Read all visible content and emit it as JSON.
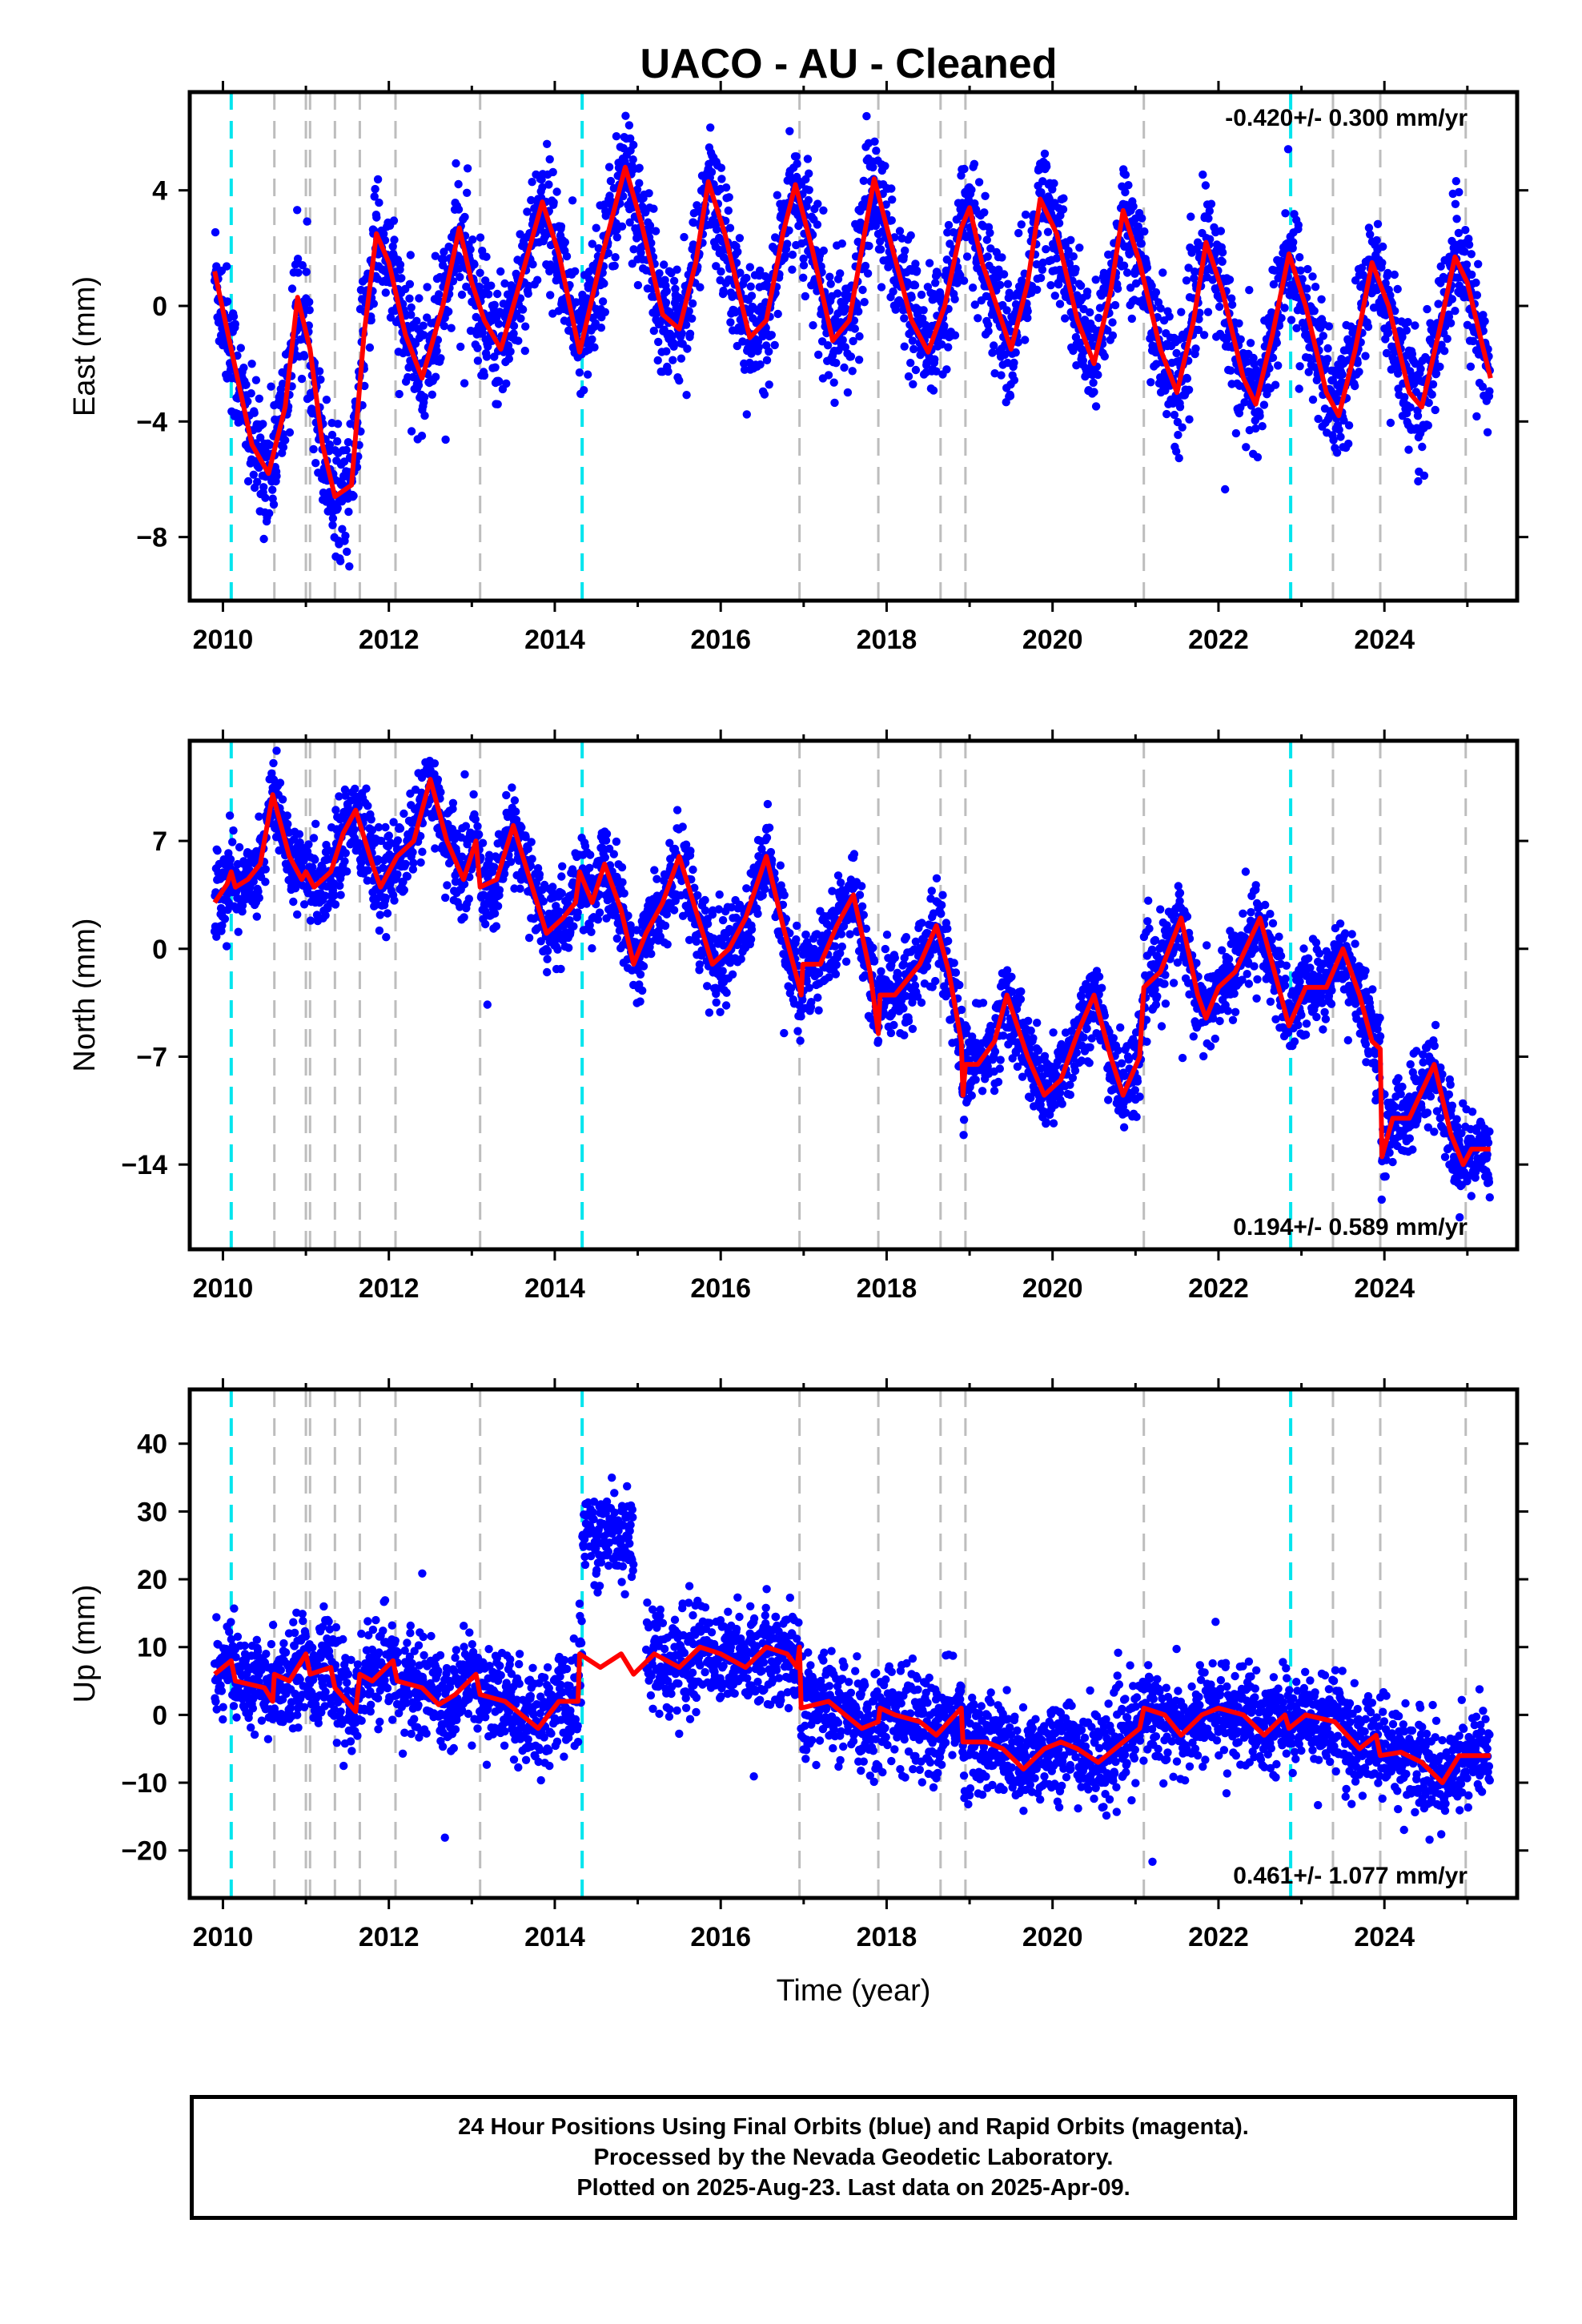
{
  "title": "UACO  - AU - Cleaned",
  "footer": {
    "line1": "24 Hour Positions Using Final Orbits (blue) and Rapid Orbits (magenta).",
    "line2": "Processed by the Nevada Geodetic Laboratory.",
    "line3": "Plotted on 2025-Aug-23. Last data on 2025-Apr-09."
  },
  "colors": {
    "data": "#0000ff",
    "model": "#ff0000",
    "equipment_change": "#00e5ee",
    "event": "#bdbdbd"
  },
  "chart_data": [
    {
      "type": "scatter",
      "component": "East",
      "ylabel": "East (mm)",
      "xlabel": "",
      "xlim": [
        2009.6,
        2025.6
      ],
      "ylim": [
        -10.2,
        7.4
      ],
      "xticks": [
        2010,
        2012,
        2014,
        2016,
        2018,
        2020,
        2022,
        2024
      ],
      "yticks": [
        -8,
        -4,
        0,
        4
      ],
      "ytick_labels": [
        "−8",
        "−4",
        "0",
        "4"
      ],
      "rate": "-0.420+/- 0.300 mm/yr",
      "rate_position": "top-right",
      "offsets": [
        {
          "year": 2014.3,
          "value": 1.2
        }
      ],
      "model_points": [
        [
          2009.9,
          1.2
        ],
        [
          2010.1,
          -1.5
        ],
        [
          2010.35,
          -4.8
        ],
        [
          2010.55,
          -5.8
        ],
        [
          2010.75,
          -3.5
        ],
        [
          2010.9,
          0.3
        ],
        [
          2011.05,
          -1.5
        ],
        [
          2011.2,
          -4.8
        ],
        [
          2011.35,
          -6.6
        ],
        [
          2011.55,
          -6.2
        ],
        [
          2011.7,
          -1.0
        ],
        [
          2011.85,
          2.5
        ],
        [
          2012.0,
          1.5
        ],
        [
          2012.2,
          -1.0
        ],
        [
          2012.4,
          -2.5
        ],
        [
          2012.65,
          0.0
        ],
        [
          2012.85,
          2.7
        ],
        [
          2013.0,
          0.8
        ],
        [
          2013.15,
          -0.5
        ],
        [
          2013.35,
          -1.5
        ],
        [
          2013.55,
          0.5
        ],
        [
          2013.85,
          3.6
        ],
        [
          2014.05,
          1.8
        ],
        [
          2014.3,
          -1.6
        ],
        [
          2014.55,
          1.5
        ],
        [
          2014.85,
          4.8
        ],
        [
          2015.05,
          2.8
        ],
        [
          2015.3,
          -0.3
        ],
        [
          2015.5,
          -0.8
        ],
        [
          2015.7,
          1.5
        ],
        [
          2015.85,
          4.3
        ],
        [
          2016.05,
          2.5
        ],
        [
          2016.35,
          -1.1
        ],
        [
          2016.55,
          -0.5
        ],
        [
          2016.75,
          2.5
        ],
        [
          2016.9,
          4.2
        ],
        [
          2017.1,
          2.0
        ],
        [
          2017.35,
          -1.2
        ],
        [
          2017.55,
          -0.5
        ],
        [
          2017.85,
          4.4
        ],
        [
          2018.05,
          2.2
        ],
        [
          2018.3,
          -0.5
        ],
        [
          2018.5,
          -1.6
        ],
        [
          2018.7,
          0.0
        ],
        [
          2018.9,
          2.7
        ],
        [
          2019.0,
          3.4
        ],
        [
          2019.15,
          1.5
        ],
        [
          2019.35,
          -0.2
        ],
        [
          2019.5,
          -1.5
        ],
        [
          2019.7,
          0.8
        ],
        [
          2019.85,
          3.7
        ],
        [
          2020.05,
          2.5
        ],
        [
          2020.3,
          -0.5
        ],
        [
          2020.5,
          -2.0
        ],
        [
          2020.7,
          0.5
        ],
        [
          2020.85,
          3.3
        ],
        [
          2021.05,
          1.5
        ],
        [
          2021.3,
          -1.5
        ],
        [
          2021.5,
          -3.0
        ],
        [
          2021.7,
          -0.5
        ],
        [
          2021.85,
          2.2
        ],
        [
          2022.05,
          0.5
        ],
        [
          2022.3,
          -2.5
        ],
        [
          2022.45,
          -3.4
        ],
        [
          2022.65,
          -1.0
        ],
        [
          2022.85,
          1.8
        ],
        [
          2023.05,
          0.0
        ],
        [
          2023.3,
          -3.0
        ],
        [
          2023.45,
          -3.8
        ],
        [
          2023.65,
          -1.5
        ],
        [
          2023.85,
          1.5
        ],
        [
          2024.05,
          0.0
        ],
        [
          2024.3,
          -3.0
        ],
        [
          2024.45,
          -3.5
        ],
        [
          2024.65,
          -1.0
        ],
        [
          2024.85,
          1.7
        ],
        [
          2025.0,
          0.8
        ],
        [
          2025.15,
          -1.0
        ],
        [
          2025.28,
          -2.5
        ]
      ]
    },
    {
      "type": "scatter",
      "component": "North",
      "ylabel": "North (mm)",
      "xlabel": "",
      "xlim": [
        2009.6,
        2025.6
      ],
      "ylim": [
        -19.5,
        13.5
      ],
      "xticks": [
        2010,
        2012,
        2014,
        2016,
        2018,
        2020,
        2022,
        2024
      ],
      "yticks": [
        -14,
        -7,
        0,
        7
      ],
      "ytick_labels": [
        "−14",
        "−7",
        "0",
        "7"
      ],
      "rate": "0.194+/- 0.589 mm/yr",
      "rate_position": "bottom-right",
      "model_points": [
        [
          2009.9,
          3.0
        ],
        [
          2010.05,
          4.2
        ],
        [
          2010.1,
          5.0
        ],
        [
          2010.15,
          4.0
        ],
        [
          2010.3,
          4.5
        ],
        [
          2010.45,
          5.5
        ],
        [
          2010.6,
          10.0
        ],
        [
          2010.8,
          6.0
        ],
        [
          2010.95,
          4.5
        ],
        [
          2011.0,
          5.0
        ],
        [
          2011.1,
          4.0
        ],
        [
          2011.3,
          5.0
        ],
        [
          2011.45,
          7.5
        ],
        [
          2011.6,
          9.0
        ],
        [
          2011.8,
          5.5
        ],
        [
          2011.9,
          4.0
        ],
        [
          2012.1,
          6.0
        ],
        [
          2012.3,
          7.0
        ],
        [
          2012.5,
          11.0
        ],
        [
          2012.7,
          7.0
        ],
        [
          2012.9,
          4.5
        ],
        [
          2013.05,
          7.0
        ],
        [
          2013.1,
          4.0
        ],
        [
          2013.3,
          4.5
        ],
        [
          2013.5,
          8.0
        ],
        [
          2013.7,
          4.5
        ],
        [
          2013.9,
          1.0
        ],
        [
          2014.1,
          2.0
        ],
        [
          2014.25,
          3.0
        ],
        [
          2014.3,
          5.0
        ],
        [
          2014.45,
          3.0
        ],
        [
          2014.6,
          5.5
        ],
        [
          2014.8,
          2.5
        ],
        [
          2014.95,
          -1.0
        ],
        [
          2015.1,
          1.0
        ],
        [
          2015.3,
          3.0
        ],
        [
          2015.5,
          6.0
        ],
        [
          2015.7,
          2.5
        ],
        [
          2015.9,
          -1.0
        ],
        [
          2016.1,
          0.0
        ],
        [
          2016.3,
          2.0
        ],
        [
          2016.55,
          6.0
        ],
        [
          2016.75,
          1.5
        ],
        [
          2016.95,
          -2.5
        ],
        [
          2016.97,
          -3.0
        ],
        [
          2016.99,
          -1.0
        ],
        [
          2017.2,
          -1.0
        ],
        [
          2017.4,
          1.5
        ],
        [
          2017.6,
          3.5
        ],
        [
          2017.8,
          -1.5
        ],
        [
          2017.9,
          -5.5
        ],
        [
          2017.92,
          -3.0
        ],
        [
          2018.1,
          -3.0
        ],
        [
          2018.4,
          -1.0
        ],
        [
          2018.6,
          1.5
        ],
        [
          2018.75,
          -1.5
        ],
        [
          2018.9,
          -6.0
        ],
        [
          2018.92,
          -9.5
        ],
        [
          2018.95,
          -7.5
        ],
        [
          2019.1,
          -7.5
        ],
        [
          2019.3,
          -6.0
        ],
        [
          2019.45,
          -3.0
        ],
        [
          2019.7,
          -7.0
        ],
        [
          2019.9,
          -9.5
        ],
        [
          2020.1,
          -8.5
        ],
        [
          2020.3,
          -5.5
        ],
        [
          2020.5,
          -3.0
        ],
        [
          2020.7,
          -7.0
        ],
        [
          2020.85,
          -9.5
        ],
        [
          2021.05,
          -7.0
        ],
        [
          2021.1,
          -2.5
        ],
        [
          2021.3,
          -1.5
        ],
        [
          2021.55,
          2.0
        ],
        [
          2021.75,
          -3.0
        ],
        [
          2021.85,
          -4.5
        ],
        [
          2022.0,
          -2.5
        ],
        [
          2022.2,
          -1.5
        ],
        [
          2022.5,
          2.0
        ],
        [
          2022.7,
          -2.0
        ],
        [
          2022.85,
          -5.0
        ],
        [
          2023.05,
          -2.5
        ],
        [
          2023.3,
          -2.5
        ],
        [
          2023.5,
          0.0
        ],
        [
          2023.7,
          -3.0
        ],
        [
          2023.85,
          -6.0
        ],
        [
          2023.95,
          -6.5
        ],
        [
          2023.97,
          -13.5
        ],
        [
          2024.1,
          -11.0
        ],
        [
          2024.3,
          -11.0
        ],
        [
          2024.6,
          -7.5
        ],
        [
          2024.8,
          -12.0
        ],
        [
          2024.95,
          -14.0
        ],
        [
          2025.05,
          -13.0
        ],
        [
          2025.28,
          -13.0
        ]
      ]
    },
    {
      "type": "scatter",
      "component": "Up",
      "ylabel": "Up (mm)",
      "xlabel": "Time (year)",
      "xlim": [
        2009.6,
        2025.6
      ],
      "ylim": [
        -27,
        48
      ],
      "xticks": [
        2010,
        2012,
        2014,
        2016,
        2018,
        2020,
        2022,
        2024
      ],
      "yticks": [
        -20,
        -10,
        0,
        10,
        20,
        30,
        40
      ],
      "ytick_labels": [
        "−20",
        "−10",
        "0",
        "10",
        "20",
        "30",
        "40"
      ],
      "rate": "0.461+/- 1.077 mm/yr",
      "rate_position": "bottom-right",
      "offsets": [
        {
          "year_start": 2014.3,
          "year_end": 2015.0,
          "value": 27
        }
      ],
      "model_points": [
        [
          2009.9,
          6.0
        ],
        [
          2010.1,
          8.0
        ],
        [
          2010.15,
          5.0
        ],
        [
          2010.5,
          4.0
        ],
        [
          2010.6,
          2.0
        ],
        [
          2010.62,
          6.0
        ],
        [
          2010.8,
          5.0
        ],
        [
          2011.0,
          9.0
        ],
        [
          2011.05,
          6.0
        ],
        [
          2011.3,
          7.0
        ],
        [
          2011.35,
          4.0
        ],
        [
          2011.6,
          0.5
        ],
        [
          2011.65,
          6.0
        ],
        [
          2011.8,
          5.0
        ],
        [
          2012.05,
          8.0
        ],
        [
          2012.1,
          5.0
        ],
        [
          2012.4,
          4.0
        ],
        [
          2012.6,
          1.5
        ],
        [
          2012.8,
          3.0
        ],
        [
          2013.05,
          6.0
        ],
        [
          2013.1,
          3.0
        ],
        [
          2013.4,
          2.0
        ],
        [
          2013.6,
          0.0
        ],
        [
          2013.8,
          -2.0
        ],
        [
          2014.05,
          2.0
        ],
        [
          2014.28,
          2.0
        ],
        [
          2014.3,
          9.0
        ],
        [
          2014.55,
          7.0
        ],
        [
          2014.8,
          9.0
        ],
        [
          2014.95,
          6.0
        ],
        [
          2015.2,
          9.0
        ],
        [
          2015.5,
          7.0
        ],
        [
          2015.75,
          10.0
        ],
        [
          2016.0,
          9.0
        ],
        [
          2016.3,
          7.0
        ],
        [
          2016.55,
          10.0
        ],
        [
          2016.8,
          9.0
        ],
        [
          2016.92,
          7.0
        ],
        [
          2016.95,
          10.0
        ],
        [
          2016.97,
          1.0
        ],
        [
          2017.3,
          2.0
        ],
        [
          2017.5,
          0.0
        ],
        [
          2017.7,
          -2.0
        ],
        [
          2017.9,
          -1.0
        ],
        [
          2017.92,
          1.0
        ],
        [
          2018.1,
          0.0
        ],
        [
          2018.4,
          -1.0
        ],
        [
          2018.6,
          -3.0
        ],
        [
          2018.9,
          1.0
        ],
        [
          2018.92,
          -4.0
        ],
        [
          2019.2,
          -4.0
        ],
        [
          2019.4,
          -5.0
        ],
        [
          2019.65,
          -8.0
        ],
        [
          2019.9,
          -5.0
        ],
        [
          2020.1,
          -4.0
        ],
        [
          2020.3,
          -5.0
        ],
        [
          2020.55,
          -7.0
        ],
        [
          2020.85,
          -4.0
        ],
        [
          2021.05,
          -2.0
        ],
        [
          2021.1,
          1.0
        ],
        [
          2021.35,
          0.0
        ],
        [
          2021.55,
          -3.0
        ],
        [
          2021.8,
          0.0
        ],
        [
          2022.0,
          1.0
        ],
        [
          2022.3,
          0.0
        ],
        [
          2022.55,
          -3.0
        ],
        [
          2022.8,
          0.0
        ],
        [
          2022.85,
          -2.0
        ],
        [
          2023.05,
          0.0
        ],
        [
          2023.4,
          -1.0
        ],
        [
          2023.7,
          -5.0
        ],
        [
          2023.9,
          -3.0
        ],
        [
          2023.95,
          -6.0
        ],
        [
          2024.2,
          -5.5
        ],
        [
          2024.45,
          -7.0
        ],
        [
          2024.7,
          -10.0
        ],
        [
          2024.9,
          -6.0
        ],
        [
          2025.28,
          -6.0
        ]
      ]
    }
  ],
  "equipment_changes": [
    2010.1,
    2014.33,
    2022.87
  ],
  "events": [
    2010.62,
    2011.0,
    2011.05,
    2011.35,
    2011.65,
    2012.08,
    2013.1,
    2016.95,
    2017.9,
    2018.65,
    2018.95,
    2021.1,
    2023.38,
    2023.95,
    2024.98
  ]
}
